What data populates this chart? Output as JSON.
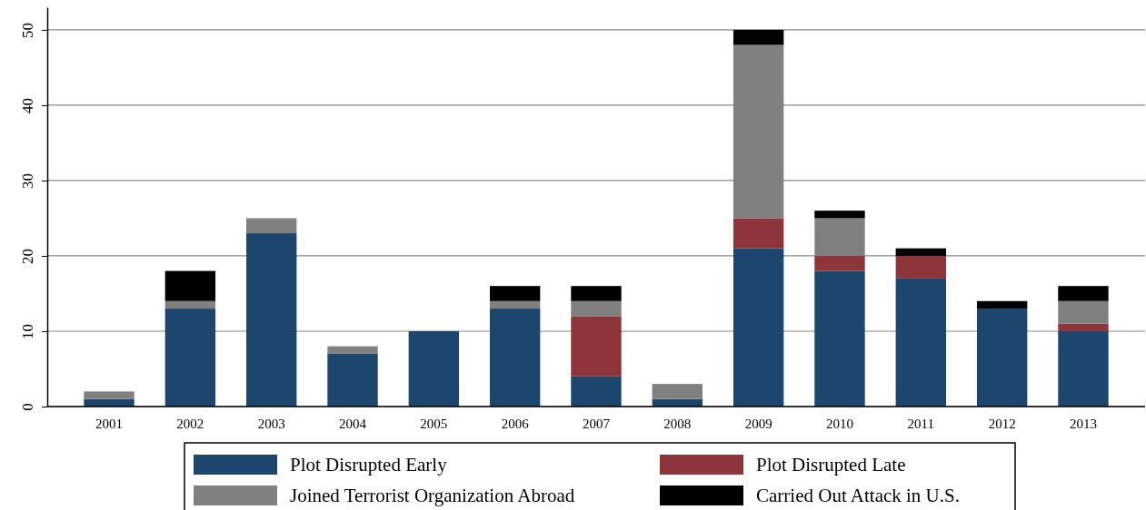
{
  "chart_data": {
    "type": "bar",
    "stacked": true,
    "categories": [
      "2001",
      "2002",
      "2003",
      "2004",
      "2005",
      "2006",
      "2007",
      "2008",
      "2009",
      "2010",
      "2011",
      "2012",
      "2013"
    ],
    "series": [
      {
        "name": "Plot Disrupted Early",
        "color": "#1c466e",
        "values": [
          1,
          13,
          23,
          7,
          10,
          13,
          4,
          1,
          21,
          18,
          17,
          13,
          10
        ]
      },
      {
        "name": "Plot Disrupted Late",
        "color": "#8e353b",
        "values": [
          0,
          0,
          0,
          0,
          0,
          0,
          8,
          0,
          4,
          2,
          3,
          0,
          1
        ]
      },
      {
        "name": "Joined Terrorist Organization Abroad",
        "color": "#808080",
        "values": [
          1,
          1,
          2,
          1,
          0,
          1,
          2,
          2,
          23,
          5,
          0,
          0,
          3
        ]
      },
      {
        "name": "Carried Out Attack in U.S.",
        "color": "#000000",
        "values": [
          0,
          4,
          0,
          0,
          0,
          2,
          2,
          0,
          2,
          1,
          1,
          1,
          2
        ]
      }
    ],
    "ylim": [
      0,
      53
    ],
    "yticks": [
      0,
      10,
      20,
      30,
      40,
      50
    ],
    "grid": "y",
    "legend": "bottom"
  }
}
